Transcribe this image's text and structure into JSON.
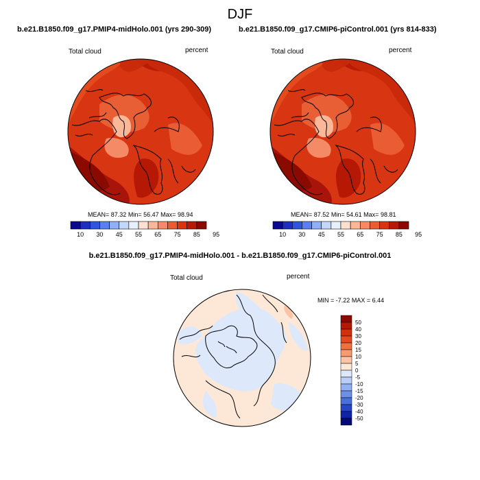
{
  "figure": {
    "title": "DJF",
    "panels": [
      {
        "title": "b.e21.B1850.f09_g17.PMIP4-midHolo.001 (yrs 290-309)",
        "left_label": "Total cloud",
        "right_label": "percent",
        "stats": {
          "mean_label": "MEAN=",
          "mean": "87.32",
          "min_label": "Min=",
          "min": "56.47",
          "max_label": "Max=",
          "max": "98.94"
        }
      },
      {
        "title": "b.e21.B1850.f09_g17.CMIP6-piControl.001 (yrs 814-833)",
        "left_label": "Total cloud",
        "right_label": "percent",
        "stats": {
          "mean_label": "MEAN=",
          "mean": "87.52",
          "min_label": "Min=",
          "min": "54.61",
          "max_label": "Max=",
          "max": "98.81"
        }
      },
      {
        "title": "b.e21.B1850.f09_g17.PMIP4-midHolo.001 - b.e21.B1850.f09_g17.CMIP6-piControl.001",
        "left_label": "Total cloud",
        "right_label": "percent",
        "minmax": {
          "min_label": "MIN =",
          "min": "-7.22",
          "max_label": "MAX =",
          "max": "6.44"
        }
      }
    ]
  },
  "colorbars": {
    "abs": {
      "labels": [
        "10",
        "30",
        "45",
        "55",
        "65",
        "75",
        "85",
        "95"
      ],
      "colors": [
        "#0a0a8c",
        "#1c2fbe",
        "#2f55dc",
        "#5a80f0",
        "#8fb0f8",
        "#c3d7fb",
        "#e9f0fd",
        "#fde0cf",
        "#fbb898",
        "#f48b66",
        "#ea5c34",
        "#d83512",
        "#b71a05",
        "#8a0a00"
      ]
    },
    "diff": {
      "labels": [
        "50",
        "40",
        "30",
        "20",
        "15",
        "10",
        "5",
        "0",
        "-5",
        "-10",
        "-15",
        "-20",
        "-30",
        "-40",
        "-50"
      ],
      "colors": [
        "#8a0a00",
        "#b51805",
        "#d2300c",
        "#e34a1e",
        "#f0713f",
        "#f79a70",
        "#fcc4a4",
        "#fde8d8",
        "#dde8fb",
        "#b9cef6",
        "#92b1f0",
        "#6b90e6",
        "#4770da",
        "#2546c8",
        "#0f24a6",
        "#060a78"
      ]
    }
  }
}
